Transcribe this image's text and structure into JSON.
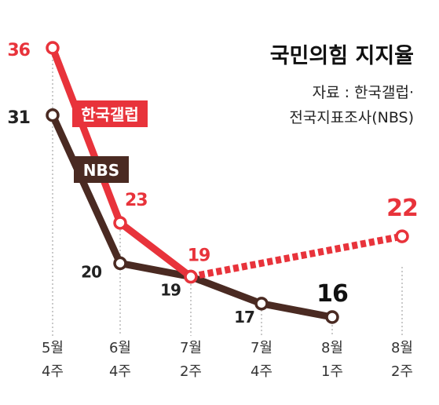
{
  "chart_data": {
    "type": "line",
    "title": "국민의힘 지지율",
    "source_line1": "자료 : 한국갤럽·",
    "source_line2": "전국지표조사(NBS)",
    "x_labels": [
      {
        "line1": "5월",
        "line2": "4주"
      },
      {
        "line1": "6월",
        "line2": "4주"
      },
      {
        "line1": "7월",
        "line2": "2주"
      },
      {
        "line1": "7월",
        "line2": "4주"
      },
      {
        "line1": "8월",
        "line2": "1주"
      },
      {
        "line1": "8월",
        "line2": "2주"
      }
    ],
    "ylim": [
      12,
      40
    ],
    "series": [
      {
        "name": "한국갤럽",
        "color": "#e8333b",
        "points": [
          {
            "x": 0,
            "y": 36,
            "label": "36"
          },
          {
            "x": 1,
            "y": 23,
            "label": "23"
          },
          {
            "x": 2,
            "y": 19,
            "label": "19"
          },
          {
            "x": 5,
            "y": 22,
            "label": "22"
          }
        ],
        "dashed_from_index": 2
      },
      {
        "name": "NBS",
        "color": "#4a2a22",
        "points": [
          {
            "x": 0,
            "y": 31,
            "label": "31"
          },
          {
            "x": 1,
            "y": 20,
            "label": "20"
          },
          {
            "x": 2,
            "y": 19,
            "label": "19"
          },
          {
            "x": 3,
            "y": 17,
            "label": "17"
          },
          {
            "x": 4,
            "y": 16,
            "label": "16"
          }
        ]
      }
    ]
  }
}
